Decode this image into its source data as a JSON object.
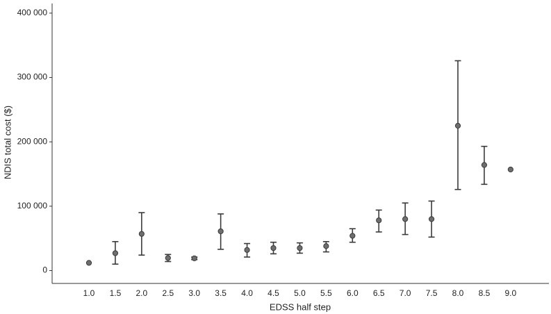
{
  "chart_data": {
    "type": "errorbar",
    "x_label": "EDSS half step",
    "y_label": "NDIS total cost ($)",
    "categories": [
      "1.0",
      "1.5",
      "2.0",
      "2.5",
      "3.0",
      "3.5",
      "4.0",
      "4.5",
      "5.0",
      "5.5",
      "6.0",
      "6.5",
      "7.0",
      "7.5",
      "8.0",
      "8.5",
      "9.0"
    ],
    "values": [
      12000,
      27000,
      57000,
      19500,
      19000,
      61000,
      32000,
      35000,
      35000,
      38000,
      54000,
      78000,
      80000,
      80000,
      225000,
      164000,
      157000
    ],
    "low": [
      null,
      10000,
      24000,
      14000,
      17000,
      33000,
      21000,
      26000,
      27000,
      29000,
      44000,
      60000,
      56000,
      52000,
      126000,
      134000,
      null
    ],
    "high": [
      null,
      45000,
      90000,
      25000,
      21000,
      88000,
      42000,
      44000,
      43000,
      45000,
      65000,
      94000,
      105000,
      108000,
      326000,
      193000,
      null
    ],
    "color": "#6e6e6e",
    "bar_color": "#3a3a3a",
    "ylim": [
      -20000,
      415000
    ],
    "yticks": [
      0,
      {
        "value": 100000,
        "label": "100 000"
      },
      {
        "value": 200000,
        "label": "200 000"
      },
      {
        "value": 300000,
        "label": "300 000"
      },
      {
        "value": 400000,
        "label": "400 000"
      }
    ],
    "grid": false
  }
}
